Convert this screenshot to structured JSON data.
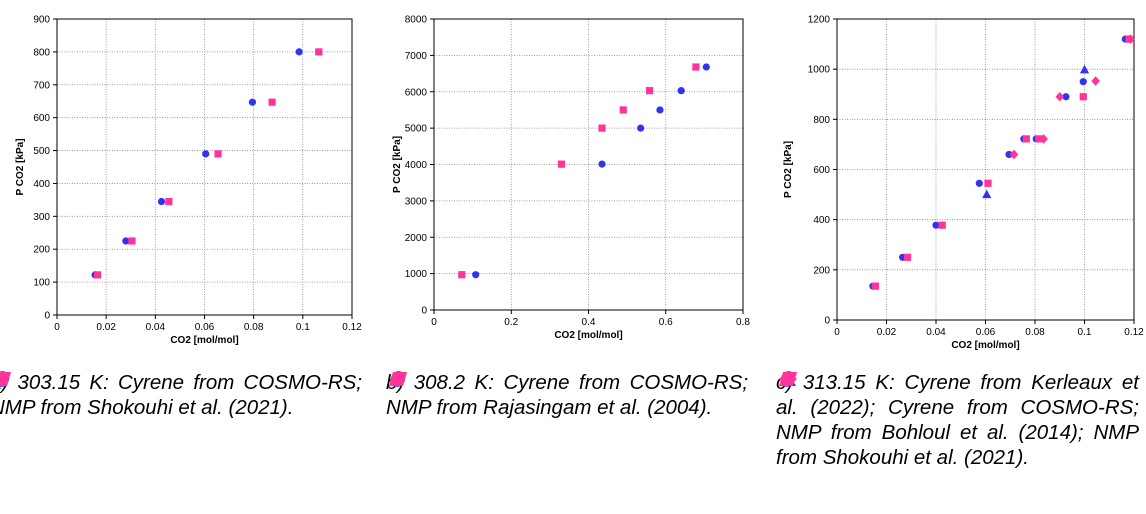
{
  "colors": {
    "cyrene": "#3333ee",
    "nmp": "#ff3399",
    "grid": "#888888"
  },
  "chart_data": [
    {
      "type": "scatter",
      "xlabel": "CO2 [mol/mol]",
      "ylabel": "P CO2 [kPa]",
      "xlim": [
        0,
        0.12
      ],
      "ylim": [
        0,
        900
      ],
      "xticks": [
        0,
        0.02,
        0.04,
        0.06,
        0.08,
        0.1,
        0.12
      ],
      "xtick_labels": [
        "0",
        "0.02",
        "0.04",
        "0.06",
        "0.08",
        "0.1",
        "0.12"
      ],
      "yticks": [
        0,
        100,
        200,
        300,
        400,
        500,
        600,
        700,
        800,
        900
      ],
      "ytick_labels": [
        "0",
        "100",
        "200",
        "300",
        "400",
        "500",
        "600",
        "700",
        "800",
        "900"
      ],
      "grid": true,
      "series": [
        {
          "marker": "circle",
          "color": "#3333ee",
          "x": [
            0.0155,
            0.028,
            0.0425,
            0.0605,
            0.0795,
            0.0985
          ],
          "y": [
            122,
            225,
            345,
            490,
            647,
            800
          ]
        },
        {
          "marker": "square",
          "color": "#ff3399",
          "x": [
            0.0165,
            0.0305,
            0.0455,
            0.0655,
            0.0875,
            0.1065
          ],
          "y": [
            122,
            225,
            345,
            490,
            647,
            800
          ]
        }
      ],
      "caption": {
        "lead": "a) 303.15 K:",
        "items": [
          {
            "marker": "circle",
            "color": "#3333ee",
            "text": "Cyrene from COSMO-RS;"
          },
          {
            "marker": "square",
            "color": "#ff3399",
            "text": "NMP from Shokouhi et al. (2021)."
          }
        ]
      }
    },
    {
      "type": "scatter",
      "xlabel": "CO2 [mol/mol]",
      "ylabel": "P CO2 [kPa]",
      "xlim": [
        0,
        0.8
      ],
      "ylim": [
        0,
        8000
      ],
      "xticks": [
        0,
        0.2,
        0.4,
        0.6,
        0.8
      ],
      "xtick_labels": [
        "0",
        "0.2",
        "0.4",
        "0.6",
        "0.8"
      ],
      "yticks": [
        0,
        1000,
        2000,
        3000,
        4000,
        5000,
        6000,
        7000,
        8000
      ],
      "ytick_labels": [
        "0",
        "1000",
        "2000",
        "3000",
        "4000",
        "5000",
        "6000",
        "7000",
        "8000"
      ],
      "grid": true,
      "series": [
        {
          "marker": "circle",
          "color": "#3333ee",
          "x": [
            0.108,
            0.435,
            0.535,
            0.585,
            0.64,
            0.705
          ],
          "y": [
            970,
            4010,
            5000,
            5500,
            6030,
            6680
          ]
        },
        {
          "marker": "square",
          "color": "#ff3399",
          "x": [
            0.072,
            0.33,
            0.435,
            0.49,
            0.558,
            0.678
          ],
          "y": [
            970,
            4010,
            5000,
            5500,
            6030,
            6680
          ]
        }
      ],
      "caption": {
        "lead": "b) 308.2 K:",
        "items": [
          {
            "marker": "circle",
            "color": "#3333ee",
            "text": "Cyrene from COSMO-RS;"
          },
          {
            "marker": "square",
            "color": "#ff3399",
            "text": "NMP from Rajasingam et al. (2004)."
          }
        ]
      }
    },
    {
      "type": "scatter",
      "xlabel": "CO2 [mol/mol]",
      "ylabel": "P CO2 [kPa]",
      "xlim": [
        0,
        0.12
      ],
      "ylim": [
        0,
        1200
      ],
      "xticks": [
        0,
        0.02,
        0.04,
        0.06,
        0.08,
        0.1,
        0.12
      ],
      "xtick_labels": [
        "0",
        "0.02",
        "0.04",
        "0.06",
        "0.08",
        "0.1",
        "0.12"
      ],
      "yticks": [
        0,
        200,
        400,
        600,
        800,
        1000,
        1200
      ],
      "ytick_labels": [
        "0",
        "200",
        "400",
        "600",
        "800",
        "1000",
        "1200"
      ],
      "grid": true,
      "series": [
        {
          "marker": "triangle",
          "color": "#3333ee",
          "x": [
            0.0605,
            0.1
          ],
          "y": [
            500,
            997
          ]
        },
        {
          "marker": "circle",
          "color": "#3333ee",
          "x": [
            0.0145,
            0.0265,
            0.04,
            0.0575,
            0.0695,
            0.0755,
            0.0805,
            0.0925,
            0.0995,
            0.1165
          ],
          "y": [
            135,
            250,
            378,
            545,
            660,
            722,
            722,
            890,
            950,
            1120
          ]
        },
        {
          "marker": "diamond",
          "color": "#ff3399",
          "x": [
            0.0715,
            0.0835,
            0.09,
            0.1045,
            0.1185
          ],
          "y": [
            660,
            722,
            890,
            953,
            1120
          ]
        },
        {
          "marker": "square",
          "color": "#ff3399",
          "x": [
            0.0155,
            0.0285,
            0.0425,
            0.061,
            0.0765,
            0.0815,
            0.0995,
            0.118
          ],
          "y": [
            135,
            250,
            378,
            545,
            722,
            722,
            890,
            1120
          ]
        }
      ],
      "caption": {
        "lead": "c) 313.15 K:",
        "items": [
          {
            "marker": "triangle",
            "color": "#3333ee",
            "text": "Cyrene from Kerleaux et al. (2022);"
          },
          {
            "marker": "circle",
            "color": "#3333ee",
            "text": "Cyrene from COSMO-RS;"
          },
          {
            "marker": "diamond",
            "color": "#ff3399",
            "text": "NMP from Bohloul et al. (2014);"
          },
          {
            "marker": "square",
            "color": "#ff3399",
            "text": "NMP from Shokouhi et al. (2021)."
          }
        ]
      }
    }
  ]
}
